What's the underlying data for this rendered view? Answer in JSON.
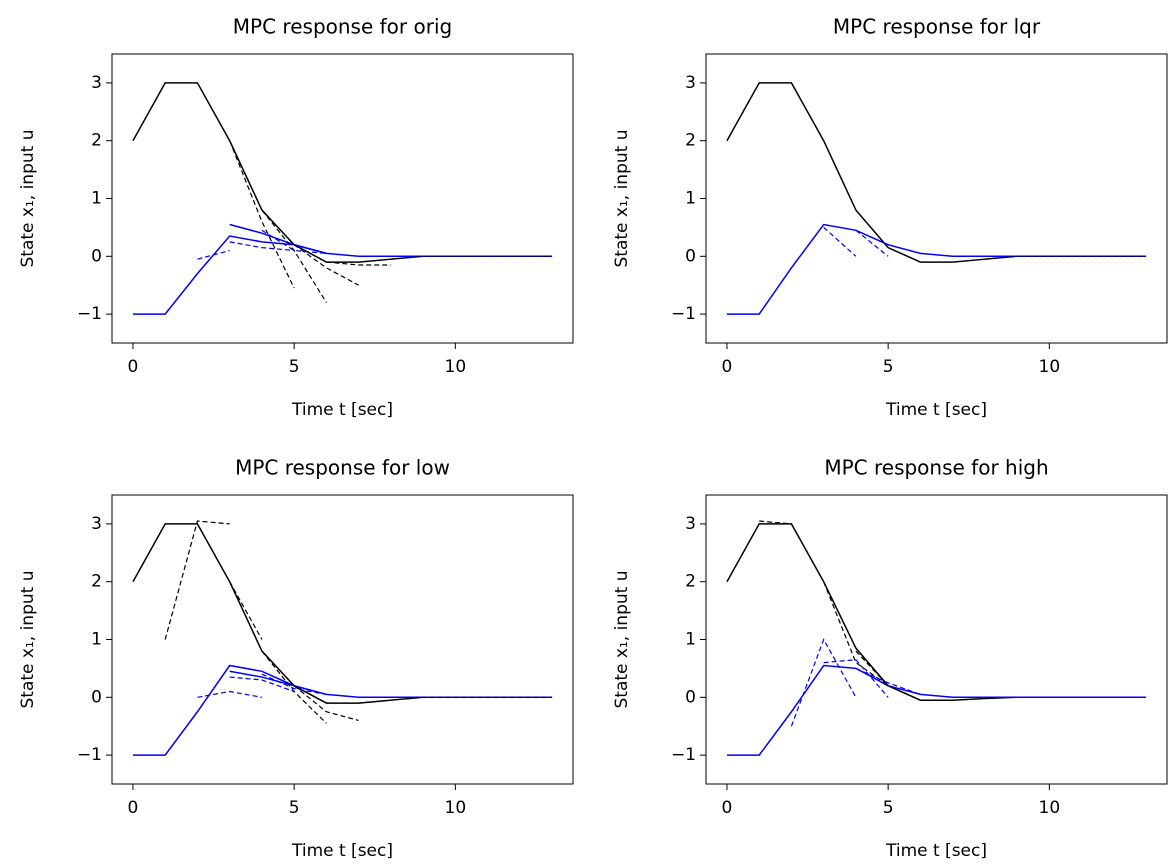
{
  "chart_data": [
    {
      "type": "line",
      "title": "MPC response for orig",
      "xlabel": "Time t [sec]",
      "ylabel": "State x₁, input u",
      "x": [
        0,
        1,
        2,
        3,
        4,
        5,
        6,
        7,
        8,
        9,
        10,
        11,
        12,
        13
      ],
      "xlim": [
        -0.65,
        13.65
      ],
      "ylim": [
        -1.5,
        3.5
      ],
      "xticks": [
        0,
        5,
        10
      ],
      "yticks": [
        {
          "value": -1,
          "label": "−1"
        },
        0,
        1,
        2,
        3
      ],
      "series": [
        {
          "color": "#000000",
          "dash": false,
          "values": [
            2,
            3,
            3,
            2,
            0.8,
            0.2,
            -0.1,
            -0.1,
            -0.05,
            0,
            0,
            0,
            0,
            0
          ]
        },
        {
          "color": "#0000ff",
          "dash": false,
          "values": [
            -1,
            -1,
            -0.3,
            0.35,
            0.25,
            0.2,
            0.05,
            0,
            0,
            0,
            0,
            0,
            0,
            0
          ]
        },
        {
          "color": "#0000ff",
          "dash": false,
          "values": [
            null,
            null,
            null,
            0.55,
            0.4,
            0.2,
            0.05,
            null,
            null,
            null,
            null,
            null,
            null,
            null
          ]
        },
        {
          "color": "#000000",
          "dash": true,
          "values": [
            null,
            null,
            null,
            2,
            0.6,
            -0.55,
            null,
            null,
            null,
            null,
            null,
            null,
            null,
            null
          ]
        },
        {
          "color": "#000000",
          "dash": true,
          "values": [
            null,
            null,
            null,
            null,
            0.8,
            0.1,
            -0.8,
            null,
            null,
            null,
            null,
            null,
            null,
            null
          ]
        },
        {
          "color": "#000000",
          "dash": true,
          "values": [
            null,
            null,
            null,
            null,
            null,
            0.2,
            -0.2,
            -0.5,
            null,
            null,
            null,
            null,
            null,
            null
          ]
        },
        {
          "color": "#000000",
          "dash": true,
          "values": [
            null,
            null,
            null,
            null,
            null,
            null,
            -0.1,
            -0.15,
            -0.15,
            null,
            null,
            null,
            null,
            null
          ]
        },
        {
          "color": "#000000",
          "dash": true,
          "values": [
            null,
            null,
            null,
            null,
            null,
            null,
            null,
            null,
            -0.05,
            0,
            0,
            0,
            0,
            0
          ]
        },
        {
          "color": "#0000ff",
          "dash": true,
          "values": [
            null,
            null,
            -0.05,
            0.1,
            null,
            null,
            null,
            null,
            null,
            null,
            null,
            null,
            null,
            null
          ]
        },
        {
          "color": "#0000ff",
          "dash": true,
          "values": [
            null,
            null,
            null,
            0.25,
            0.15,
            0.1,
            null,
            null,
            null,
            null,
            null,
            null,
            null,
            null
          ]
        },
        {
          "color": "#0000ff",
          "dash": true,
          "values": [
            null,
            null,
            null,
            null,
            0.45,
            0.1,
            0.05,
            null,
            null,
            null,
            null,
            null,
            null,
            null
          ]
        }
      ]
    },
    {
      "type": "line",
      "title": "MPC response for lqr",
      "xlabel": "Time t [sec]",
      "ylabel": "State x₁, input u",
      "x": [
        0,
        1,
        2,
        3,
        4,
        5,
        6,
        7,
        8,
        9,
        10,
        11,
        12,
        13
      ],
      "xlim": [
        -0.65,
        13.65
      ],
      "ylim": [
        -1.5,
        3.5
      ],
      "xticks": [
        0,
        5,
        10
      ],
      "yticks": [
        {
          "value": -1,
          "label": "−1"
        },
        0,
        1,
        2,
        3
      ],
      "series": [
        {
          "color": "#000000",
          "dash": false,
          "values": [
            2,
            3,
            3,
            2,
            0.8,
            0.15,
            -0.1,
            -0.1,
            -0.05,
            0,
            0,
            0,
            0,
            0
          ]
        },
        {
          "color": "#0000ff",
          "dash": false,
          "values": [
            -1,
            -1,
            -0.2,
            0.55,
            0.45,
            0.2,
            0.05,
            0,
            0,
            0,
            0,
            0,
            0,
            0
          ]
        },
        {
          "color": "#0000ff",
          "dash": true,
          "values": [
            null,
            null,
            null,
            0.5,
            0,
            null,
            null,
            null,
            null,
            null,
            null,
            null,
            null,
            null
          ]
        },
        {
          "color": "#0000ff",
          "dash": true,
          "values": [
            null,
            null,
            null,
            null,
            0.45,
            0,
            null,
            null,
            null,
            null,
            null,
            null,
            null,
            null
          ]
        },
        {
          "color": "#000000",
          "dash": true,
          "values": [
            null,
            null,
            null,
            null,
            null,
            null,
            null,
            null,
            -0.05,
            0,
            0,
            0,
            0,
            0
          ]
        }
      ]
    },
    {
      "type": "line",
      "title": "MPC response for low",
      "xlabel": "Time t [sec]",
      "ylabel": "State x₁, input u",
      "x": [
        0,
        1,
        2,
        3,
        4,
        5,
        6,
        7,
        8,
        9,
        10,
        11,
        12,
        13
      ],
      "xlim": [
        -0.65,
        13.65
      ],
      "ylim": [
        -1.5,
        3.5
      ],
      "xticks": [
        0,
        5,
        10
      ],
      "yticks": [
        {
          "value": -1,
          "label": "−1"
        },
        0,
        1,
        2,
        3
      ],
      "series": [
        {
          "color": "#000000",
          "dash": false,
          "values": [
            2,
            3,
            3,
            2,
            0.8,
            0.2,
            -0.1,
            -0.1,
            -0.05,
            0,
            0,
            0,
            0,
            0
          ]
        },
        {
          "color": "#0000ff",
          "dash": false,
          "values": [
            -1,
            -1,
            -0.25,
            0.55,
            0.45,
            0.2,
            0.05,
            0,
            0,
            0,
            0,
            0,
            0,
            0
          ]
        },
        {
          "color": "#0000ff",
          "dash": false,
          "values": [
            null,
            null,
            null,
            0.45,
            0.35,
            0.2,
            null,
            null,
            null,
            null,
            null,
            null,
            null,
            null
          ]
        },
        {
          "color": "#000000",
          "dash": true,
          "values": [
            null,
            1,
            3.05,
            3.0,
            null,
            null,
            null,
            null,
            null,
            null,
            null,
            null,
            null,
            null
          ]
        },
        {
          "color": "#000000",
          "dash": true,
          "values": [
            null,
            null,
            null,
            2,
            1.0,
            null,
            null,
            null,
            null,
            null,
            null,
            null,
            null,
            null
          ]
        },
        {
          "color": "#000000",
          "dash": true,
          "values": [
            null,
            null,
            null,
            null,
            0.8,
            0.1,
            -0.45,
            null,
            null,
            null,
            null,
            null,
            null,
            null
          ]
        },
        {
          "color": "#000000",
          "dash": true,
          "values": [
            null,
            null,
            null,
            null,
            null,
            0.2,
            -0.25,
            -0.4,
            null,
            null,
            null,
            null,
            null,
            null
          ]
        },
        {
          "color": "#000000",
          "dash": true,
          "values": [
            null,
            null,
            null,
            null,
            null,
            null,
            -0.1,
            -0.1,
            -0.05,
            0,
            0,
            0,
            0,
            0
          ]
        },
        {
          "color": "#0000ff",
          "dash": true,
          "values": [
            null,
            null,
            0,
            0.1,
            0,
            null,
            null,
            null,
            null,
            null,
            null,
            null,
            null,
            null
          ]
        },
        {
          "color": "#0000ff",
          "dash": true,
          "values": [
            null,
            null,
            null,
            0.35,
            0.3,
            0.1,
            null,
            null,
            null,
            null,
            null,
            null,
            null,
            null
          ]
        },
        {
          "color": "#0000ff",
          "dash": true,
          "values": [
            null,
            null,
            null,
            null,
            0.4,
            0.15,
            0.05,
            null,
            null,
            null,
            null,
            null,
            null,
            null
          ]
        }
      ]
    },
    {
      "type": "line",
      "title": "MPC response for high",
      "xlabel": "Time t [sec]",
      "ylabel": "State x₁, input u",
      "x": [
        0,
        1,
        2,
        3,
        4,
        5,
        6,
        7,
        8,
        9,
        10,
        11,
        12,
        13
      ],
      "xlim": [
        -0.65,
        13.65
      ],
      "ylim": [
        -1.5,
        3.5
      ],
      "xticks": [
        0,
        5,
        10
      ],
      "yticks": [
        {
          "value": -1,
          "label": "−1"
        },
        0,
        1,
        2,
        3
      ],
      "series": [
        {
          "color": "#000000",
          "dash": false,
          "values": [
            2,
            3,
            3,
            2,
            0.85,
            0.2,
            -0.05,
            -0.05,
            -0.02,
            0,
            0,
            0,
            0,
            0
          ]
        },
        {
          "color": "#0000ff",
          "dash": false,
          "values": [
            -1,
            -1,
            -0.25,
            0.55,
            0.5,
            0.2,
            0.05,
            0,
            0,
            0,
            0,
            0,
            0,
            0
          ]
        },
        {
          "color": "#000000",
          "dash": true,
          "values": [
            null,
            3.05,
            3.0,
            null,
            null,
            null,
            null,
            null,
            null,
            null,
            null,
            null,
            null,
            null
          ]
        },
        {
          "color": "#000000",
          "dash": true,
          "values": [
            null,
            null,
            null,
            2,
            0.6,
            0.2,
            null,
            null,
            null,
            null,
            null,
            null,
            null,
            null
          ]
        },
        {
          "color": "#000000",
          "dash": true,
          "values": [
            null,
            null,
            null,
            null,
            0.8,
            0.2,
            -0.05,
            null,
            null,
            null,
            null,
            null,
            null,
            null
          ]
        },
        {
          "color": "#0000ff",
          "dash": true,
          "values": [
            null,
            null,
            -0.5,
            1.0,
            0,
            null,
            null,
            null,
            null,
            null,
            null,
            null,
            null,
            null
          ]
        },
        {
          "color": "#0000ff",
          "dash": true,
          "values": [
            null,
            null,
            null,
            0.6,
            0.65,
            0,
            null,
            null,
            null,
            null,
            null,
            null,
            null,
            null
          ]
        },
        {
          "color": "#0000ff",
          "dash": true,
          "values": [
            null,
            null,
            null,
            null,
            0.5,
            0.25,
            0.05,
            null,
            null,
            null,
            null,
            null,
            null,
            null
          ]
        }
      ]
    }
  ]
}
